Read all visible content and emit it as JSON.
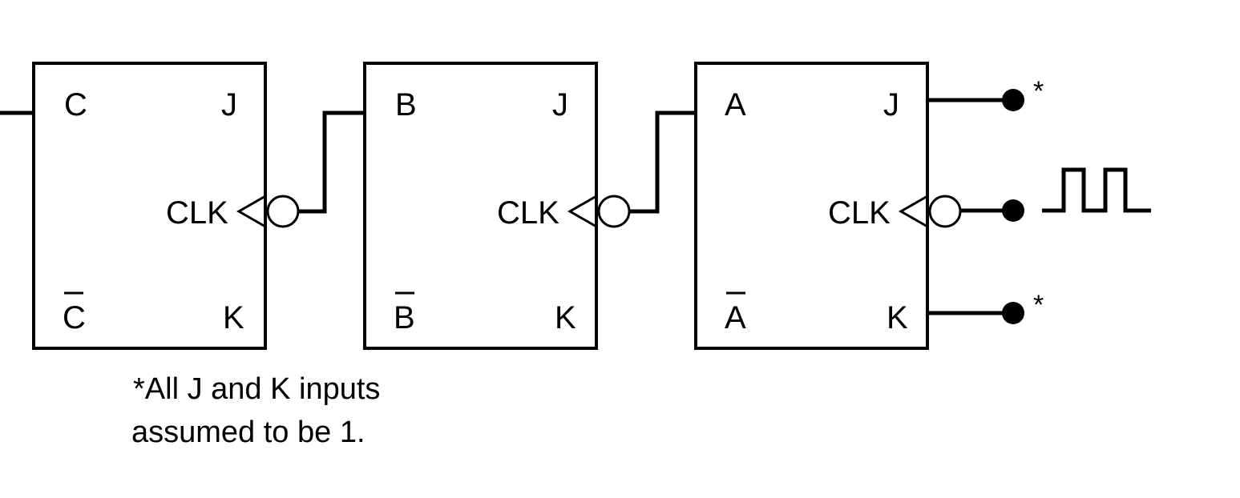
{
  "flipflops": [
    {
      "id": "ff-c",
      "q_label": "C",
      "qbar_label": "C",
      "j_label": "J",
      "k_label": "K",
      "clk_label": "CLK"
    },
    {
      "id": "ff-b",
      "q_label": "B",
      "qbar_label": "B",
      "j_label": "J",
      "k_label": "K",
      "clk_label": "CLK"
    },
    {
      "id": "ff-a",
      "q_label": "A",
      "qbar_label": "A",
      "j_label": "J",
      "k_label": "K",
      "clk_label": "CLK"
    }
  ],
  "inputs": {
    "j_marker": "*",
    "k_marker": "*"
  },
  "note": {
    "line1": "*All J and K inputs",
    "line2": "assumed to be 1."
  }
}
